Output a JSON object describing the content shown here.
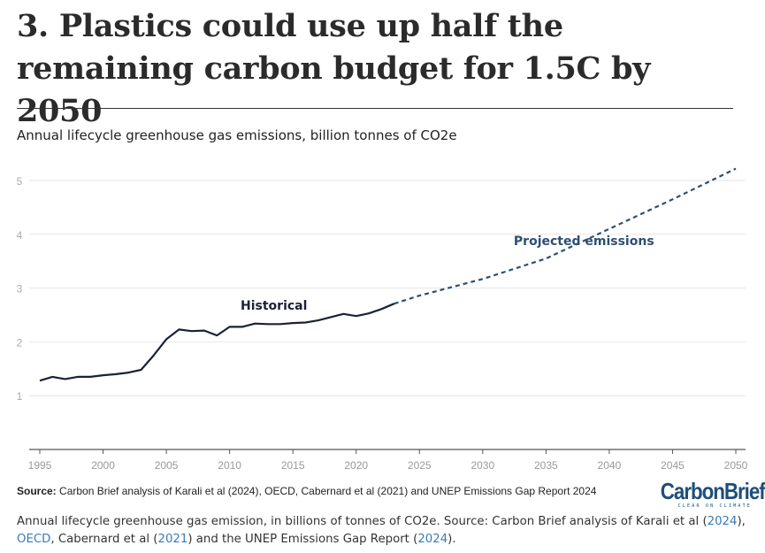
{
  "article": {
    "headline": "3. Plastics could use up half the remaining carbon budget for 1.5C by 2050",
    "subtitle": "Annual lifecycle greenhouse gas emissions, billion tonnes of CO2e",
    "source_label": "Source:",
    "source_text": " Carbon Brief analysis of Karali et al (2024), OECD, Cabernard et al (2021) and UNEP Emissions Gap Report 2024",
    "logo": {
      "name": "CarbonBrief",
      "tagline": "CLEAR ON CLIMATE"
    },
    "caption": {
      "part1": "Annual lifecycle greenhouse gas emission, in billions of tonnes of CO2e. Source: Carbon Brief analysis of Karali et al (",
      "link1": "2024",
      "part2": "), ",
      "link2": "OECD",
      "part3": ", Cabernard et al (",
      "link3": "2021",
      "part4": ") and the UNEP Emissions Gap Report (",
      "link4": "2024",
      "part5": ")."
    }
  },
  "colors": {
    "historical": "#1a2238",
    "projected": "#2e4f73",
    "grid": "#e6e6e6",
    "tick_text": "#aaaaaa",
    "axis": "#555555",
    "link": "#3a7ab8"
  },
  "chart_data": {
    "type": "line",
    "title": "3. Plastics could use up half the remaining carbon budget for 1.5C by 2050",
    "subtitle": "Annual lifecycle greenhouse gas emissions, billion tonnes of CO2e",
    "xlabel": "",
    "ylabel": "billion tonnes of CO2e",
    "xlim": [
      1995,
      2050
    ],
    "ylim": [
      0,
      5.3
    ],
    "x_ticks": [
      1995,
      2000,
      2005,
      2010,
      2015,
      2020,
      2025,
      2030,
      2035,
      2040,
      2045,
      2050
    ],
    "y_ticks": [
      1,
      2,
      3,
      4,
      5
    ],
    "grid": true,
    "series": [
      {
        "name": "Historical",
        "style": "solid",
        "x": [
          1995,
          1996,
          1997,
          1998,
          1999,
          2000,
          2001,
          2002,
          2003,
          2004,
          2005,
          2006,
          2007,
          2008,
          2009,
          2010,
          2011,
          2012,
          2013,
          2014,
          2015,
          2016,
          2017,
          2018,
          2019,
          2020,
          2021,
          2022,
          2023
        ],
        "values": [
          1.28,
          1.35,
          1.31,
          1.35,
          1.35,
          1.38,
          1.4,
          1.43,
          1.48,
          1.75,
          2.05,
          2.23,
          2.2,
          2.21,
          2.12,
          2.28,
          2.28,
          2.34,
          2.33,
          2.33,
          2.35,
          2.36,
          2.4,
          2.46,
          2.52,
          2.48,
          2.53,
          2.61,
          2.71
        ]
      },
      {
        "name": "Projected emissions",
        "style": "dashed",
        "x": [
          2023,
          2025,
          2030,
          2035,
          2040,
          2045,
          2050
        ],
        "values": [
          2.71,
          2.86,
          3.17,
          3.55,
          4.1,
          4.65,
          5.22
        ]
      }
    ],
    "annotations": [
      {
        "text": "Historical",
        "x": 2013.5,
        "y": 2.6
      },
      {
        "text": "Projected emissions",
        "x": 2038,
        "y": 3.8
      }
    ]
  }
}
